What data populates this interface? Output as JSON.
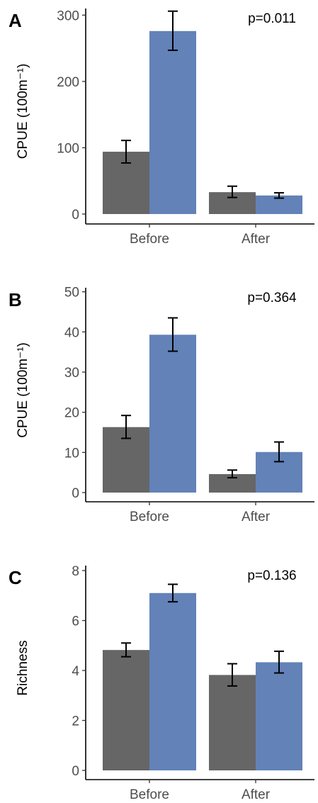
{
  "colors": {
    "group1": "#666666",
    "group2": "#6282b8"
  },
  "chart_data": [
    {
      "type": "bar",
      "panel": "A",
      "annotation": "p=0.011",
      "ylabel": "CPUE (100m⁻¹)",
      "categories": [
        "Before",
        "After"
      ],
      "ylim": [
        0,
        310
      ],
      "yticks": [
        0,
        100,
        200,
        300
      ],
      "series": [
        {
          "values": [
            94,
            33
          ],
          "errors": [
            [
              77,
              111
            ],
            [
              25,
              42
            ]
          ],
          "color": "#666666"
        },
        {
          "values": [
            276,
            28
          ],
          "errors": [
            [
              247,
              306
            ],
            [
              24,
              32
            ]
          ],
          "color": "#6282b8"
        }
      ]
    },
    {
      "type": "bar",
      "panel": "B",
      "annotation": "p=0.364",
      "ylabel": "CPUE (100m⁻¹)",
      "categories": [
        "Before",
        "After"
      ],
      "ylim": [
        0,
        51
      ],
      "yticks": [
        0,
        10,
        20,
        30,
        40,
        50
      ],
      "series": [
        {
          "values": [
            16.3,
            4.6
          ],
          "errors": [
            [
              13.5,
              19.2
            ],
            [
              3.7,
              5.6
            ]
          ],
          "color": "#666666"
        },
        {
          "values": [
            39.3,
            10.1
          ],
          "errors": [
            [
              35.2,
              43.5
            ],
            [
              7.7,
              12.6
            ]
          ],
          "color": "#6282b8"
        }
      ]
    },
    {
      "type": "bar",
      "panel": "C",
      "annotation": "p=0.136",
      "ylabel": "Richness",
      "categories": [
        "Before",
        "After"
      ],
      "ylim": [
        0,
        8.2
      ],
      "yticks": [
        0,
        2,
        4,
        6,
        8
      ],
      "series": [
        {
          "values": [
            4.82,
            3.82
          ],
          "errors": [
            [
              4.55,
              5.1
            ],
            [
              3.38,
              4.27
            ]
          ],
          "color": "#666666"
        },
        {
          "values": [
            7.1,
            4.33
          ],
          "errors": [
            [
              6.75,
              7.45
            ],
            [
              3.9,
              4.77
            ]
          ],
          "color": "#6282b8"
        }
      ]
    }
  ]
}
